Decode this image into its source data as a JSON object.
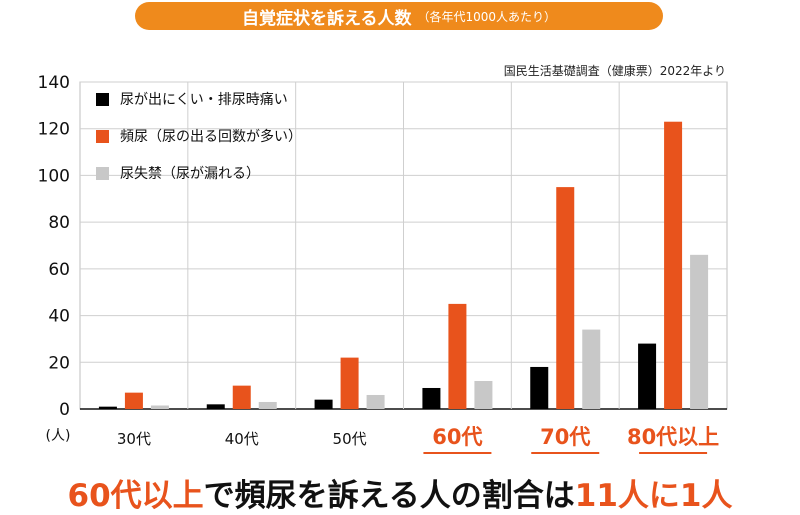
{
  "banner": {
    "title": "自覚症状を訴える人数",
    "subtitle": "（各年代1000人あたり）"
  },
  "source": "国民生活基礎調査（健康票）2022年より",
  "unit_label": "(人)",
  "footer": {
    "part1": "60代以上",
    "part2": "で頻尿を訴える人の割合は",
    "part3": "11人に1人"
  },
  "colors": {
    "banner": "#ef8a1c",
    "series": [
      "#000000",
      "#e8531c",
      "#c8c8c8"
    ],
    "highlight": "#e8531c"
  },
  "chart_data": {
    "type": "bar",
    "categories": [
      "30代",
      "40代",
      "50代",
      "60代",
      "70代",
      "80代以上"
    ],
    "highlighted_categories": [
      "60代",
      "70代",
      "80代以上"
    ],
    "series": [
      {
        "name": "尿が出にくい・排尿時痛い",
        "values": [
          1,
          2,
          4,
          9,
          18,
          28
        ]
      },
      {
        "name": "頻尿（尿の出る回数が多い）",
        "values": [
          7,
          10,
          22,
          45,
          95,
          123
        ]
      },
      {
        "name": "尿失禁（尿が漏れる）",
        "values": [
          1.5,
          3,
          6,
          12,
          34,
          66
        ]
      }
    ],
    "ylim": [
      0,
      140
    ],
    "yticks": [
      0,
      20,
      40,
      60,
      80,
      100,
      120,
      140
    ],
    "grid": true,
    "legend": "top-left"
  }
}
